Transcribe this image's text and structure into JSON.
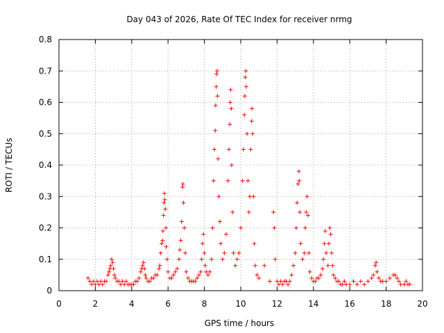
{
  "chart_data": {
    "type": "scatter",
    "title": "Day 043 of 2026, Rate Of TEC Index for receiver nrmg",
    "xlabel": "GPS time / hours",
    "ylabel": "ROTI / TECUs",
    "xlim": [
      0,
      20
    ],
    "ylim": [
      0,
      0.8
    ],
    "xticks": [
      "0",
      "2",
      "4",
      "6",
      "8",
      "10",
      "12",
      "14",
      "16",
      "18",
      "20"
    ],
    "yticks": [
      "0",
      "0.1",
      "0.2",
      "0.3",
      "0.4",
      "0.5",
      "0.6",
      "0.7",
      "0.8"
    ],
    "grid": true,
    "marker": "+",
    "color": "#ff0000",
    "series": [
      {
        "points": [
          [
            1.6,
            0.04
          ],
          [
            1.7,
            0.03
          ],
          [
            1.8,
            0.02
          ],
          [
            1.9,
            0.03
          ],
          [
            2.0,
            0.02
          ],
          [
            2.1,
            0.03
          ],
          [
            2.2,
            0.02
          ],
          [
            2.3,
            0.03
          ],
          [
            2.4,
            0.02
          ],
          [
            2.5,
            0.03
          ],
          [
            2.6,
            0.03
          ],
          [
            2.7,
            0.05
          ],
          [
            2.75,
            0.06
          ],
          [
            2.8,
            0.07
          ],
          [
            2.85,
            0.08
          ],
          [
            2.9,
            0.1
          ],
          [
            2.95,
            0.09
          ],
          [
            3.0,
            0.07
          ],
          [
            3.05,
            0.05
          ],
          [
            3.1,
            0.04
          ],
          [
            3.2,
            0.03
          ],
          [
            3.3,
            0.03
          ],
          [
            3.4,
            0.02
          ],
          [
            3.5,
            0.03
          ],
          [
            3.6,
            0.02
          ],
          [
            3.7,
            0.03
          ],
          [
            3.8,
            0.02
          ],
          [
            3.9,
            0.02
          ],
          [
            4.0,
            0.02
          ],
          [
            4.1,
            0.02
          ],
          [
            4.2,
            0.03
          ],
          [
            4.3,
            0.03
          ],
          [
            4.4,
            0.04
          ],
          [
            4.5,
            0.06
          ],
          [
            4.55,
            0.07
          ],
          [
            4.6,
            0.08
          ],
          [
            4.65,
            0.09
          ],
          [
            4.7,
            0.07
          ],
          [
            4.75,
            0.05
          ],
          [
            4.8,
            0.04
          ],
          [
            4.9,
            0.03
          ],
          [
            5.0,
            0.03
          ],
          [
            5.1,
            0.04
          ],
          [
            5.2,
            0.04
          ],
          [
            5.3,
            0.05
          ],
          [
            5.4,
            0.05
          ],
          [
            5.5,
            0.07
          ],
          [
            5.55,
            0.08
          ],
          [
            5.6,
            0.12
          ],
          [
            5.65,
            0.15
          ],
          [
            5.7,
            0.16
          ],
          [
            5.72,
            0.19
          ],
          [
            5.75,
            0.24
          ],
          [
            5.78,
            0.28
          ],
          [
            5.8,
            0.31
          ],
          [
            5.82,
            0.29
          ],
          [
            5.85,
            0.26
          ],
          [
            5.88,
            0.2
          ],
          [
            5.9,
            0.14
          ],
          [
            5.95,
            0.1
          ],
          [
            6.0,
            0.06
          ],
          [
            6.1,
            0.04
          ],
          [
            6.2,
            0.04
          ],
          [
            6.3,
            0.05
          ],
          [
            6.4,
            0.06
          ],
          [
            6.5,
            0.07
          ],
          [
            6.6,
            0.1
          ],
          [
            6.65,
            0.13
          ],
          [
            6.7,
            0.16
          ],
          [
            6.75,
            0.22
          ],
          [
            6.8,
            0.33
          ],
          [
            6.82,
            0.34
          ],
          [
            6.85,
            0.28
          ],
          [
            6.9,
            0.2
          ],
          [
            6.95,
            0.12
          ],
          [
            7.0,
            0.06
          ],
          [
            7.1,
            0.04
          ],
          [
            7.2,
            0.03
          ],
          [
            7.3,
            0.03
          ],
          [
            7.4,
            0.03
          ],
          [
            7.5,
            0.03
          ],
          [
            7.6,
            0.04
          ],
          [
            7.7,
            0.05
          ],
          [
            7.8,
            0.06
          ],
          [
            7.85,
            0.1
          ],
          [
            7.9,
            0.15
          ],
          [
            7.95,
            0.18
          ],
          [
            8.0,
            0.12
          ],
          [
            8.05,
            0.08
          ],
          [
            8.1,
            0.06
          ],
          [
            8.2,
            0.05
          ],
          [
            8.3,
            0.06
          ],
          [
            8.4,
            0.1
          ],
          [
            8.45,
            0.2
          ],
          [
            8.5,
            0.35
          ],
          [
            8.55,
            0.45
          ],
          [
            8.6,
            0.51
          ],
          [
            8.62,
            0.59
          ],
          [
            8.65,
            0.65
          ],
          [
            8.67,
            0.69
          ],
          [
            8.7,
            0.7
          ],
          [
            8.72,
            0.62
          ],
          [
            8.75,
            0.42
          ],
          [
            8.8,
            0.3
          ],
          [
            8.85,
            0.22
          ],
          [
            8.9,
            0.15
          ],
          [
            9.0,
            0.1
          ],
          [
            9.1,
            0.12
          ],
          [
            9.2,
            0.18
          ],
          [
            9.3,
            0.35
          ],
          [
            9.35,
            0.45
          ],
          [
            9.4,
            0.53
          ],
          [
            9.42,
            0.6
          ],
          [
            9.45,
            0.64
          ],
          [
            9.48,
            0.58
          ],
          [
            9.5,
            0.4
          ],
          [
            9.55,
            0.25
          ],
          [
            9.6,
            0.12
          ],
          [
            9.7,
            0.08
          ],
          [
            9.8,
            0.1
          ],
          [
            9.9,
            0.12
          ],
          [
            10.0,
            0.2
          ],
          [
            10.1,
            0.35
          ],
          [
            10.15,
            0.45
          ],
          [
            10.2,
            0.56
          ],
          [
            10.22,
            0.62
          ],
          [
            10.25,
            0.68
          ],
          [
            10.28,
            0.7
          ],
          [
            10.3,
            0.65
          ],
          [
            10.35,
            0.5
          ],
          [
            10.4,
            0.35
          ],
          [
            10.45,
            0.25
          ],
          [
            10.5,
            0.3
          ],
          [
            10.55,
            0.45
          ],
          [
            10.6,
            0.54
          ],
          [
            10.62,
            0.58
          ],
          [
            10.65,
            0.5
          ],
          [
            10.7,
            0.3
          ],
          [
            10.75,
            0.15
          ],
          [
            10.8,
            0.08
          ],
          [
            10.9,
            0.05
          ],
          [
            11.0,
            0.04
          ],
          [
            11.3,
            0.08
          ],
          [
            11.6,
            0.03
          ],
          [
            11.8,
            0.25
          ],
          [
            11.85,
            0.2
          ],
          [
            11.9,
            0.1
          ],
          [
            12.0,
            0.03
          ],
          [
            12.1,
            0.02
          ],
          [
            12.2,
            0.03
          ],
          [
            12.3,
            0.02
          ],
          [
            12.4,
            0.03
          ],
          [
            12.5,
            0.03
          ],
          [
            12.6,
            0.02
          ],
          [
            12.7,
            0.03
          ],
          [
            12.8,
            0.05
          ],
          [
            12.9,
            0.08
          ],
          [
            13.0,
            0.12
          ],
          [
            13.05,
            0.2
          ],
          [
            13.1,
            0.28
          ],
          [
            13.15,
            0.34
          ],
          [
            13.2,
            0.38
          ],
          [
            13.22,
            0.35
          ],
          [
            13.25,
            0.25
          ],
          [
            13.3,
            0.15
          ],
          [
            13.4,
            0.1
          ],
          [
            13.5,
            0.12
          ],
          [
            13.55,
            0.2
          ],
          [
            13.6,
            0.25
          ],
          [
            13.65,
            0.3
          ],
          [
            13.7,
            0.24
          ],
          [
            13.75,
            0.12
          ],
          [
            13.8,
            0.06
          ],
          [
            13.9,
            0.04
          ],
          [
            14.0,
            0.03
          ],
          [
            14.1,
            0.03
          ],
          [
            14.2,
            0.04
          ],
          [
            14.3,
            0.04
          ],
          [
            14.4,
            0.05
          ],
          [
            14.5,
            0.07
          ],
          [
            14.55,
            0.1
          ],
          [
            14.6,
            0.15
          ],
          [
            14.65,
            0.19
          ],
          [
            14.7,
            0.12
          ],
          [
            14.8,
            0.08
          ],
          [
            14.85,
            0.15
          ],
          [
            14.9,
            0.2
          ],
          [
            14.95,
            0.18
          ],
          [
            15.0,
            0.12
          ],
          [
            15.05,
            0.08
          ],
          [
            15.1,
            0.05
          ],
          [
            15.2,
            0.04
          ],
          [
            15.3,
            0.03
          ],
          [
            15.4,
            0.03
          ],
          [
            15.5,
            0.02
          ],
          [
            15.6,
            0.02
          ],
          [
            15.7,
            0.03
          ],
          [
            15.8,
            0.02
          ],
          [
            16.0,
            0.02
          ],
          [
            16.2,
            0.03
          ],
          [
            16.4,
            0.02
          ],
          [
            16.6,
            0.03
          ],
          [
            16.8,
            0.02
          ],
          [
            17.0,
            0.03
          ],
          [
            17.2,
            0.04
          ],
          [
            17.3,
            0.05
          ],
          [
            17.4,
            0.08
          ],
          [
            17.45,
            0.09
          ],
          [
            17.5,
            0.06
          ],
          [
            17.6,
            0.04
          ],
          [
            17.7,
            0.03
          ],
          [
            17.8,
            0.03
          ],
          [
            18.0,
            0.03
          ],
          [
            18.2,
            0.04
          ],
          [
            18.4,
            0.05
          ],
          [
            18.5,
            0.05
          ],
          [
            18.6,
            0.04
          ],
          [
            18.7,
            0.03
          ],
          [
            18.8,
            0.02
          ],
          [
            19.0,
            0.02
          ],
          [
            19.1,
            0.03
          ],
          [
            19.2,
            0.02
          ],
          [
            19.3,
            0.02
          ]
        ]
      }
    ]
  }
}
